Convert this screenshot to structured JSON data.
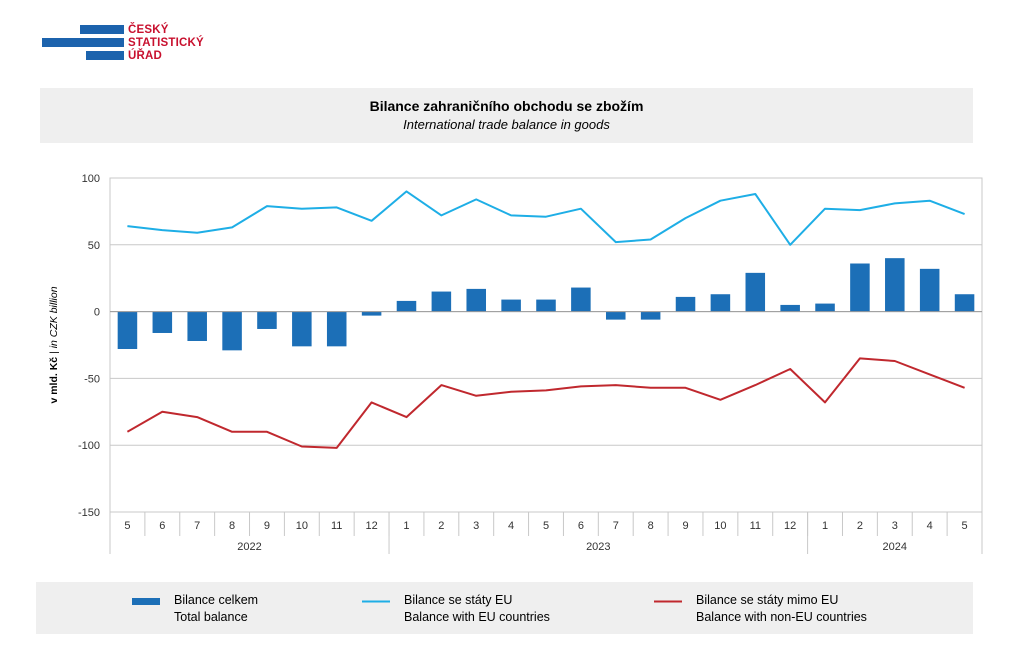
{
  "logo": {
    "lines": [
      "ČESKÝ",
      "STATISTICKÝ",
      "ÚŘAD"
    ]
  },
  "title": {
    "cz": "Bilance zahraničního obchodu se zbožím",
    "en": "International trade balance in goods"
  },
  "colors": {
    "total": "#1c6fb7",
    "eu": "#1eaee6",
    "non_eu": "#c0282e",
    "grid": "#c8c8c8",
    "panel": "#efefef"
  },
  "legend": [
    {
      "cz": "Bilance celkem",
      "en": "Total balance"
    },
    {
      "cz": "Bilance se státy EU",
      "en": "Balance with EU countries"
    },
    {
      "cz": "Bilance se státy mimo EU",
      "en": "Balance with non-EU countries"
    }
  ],
  "chart_data": {
    "type": "bar",
    "ylabel_cz": "v mld. Kč",
    "ylabel_en": "in CZK billion",
    "ylim": [
      -150,
      100
    ],
    "yticks": [
      100,
      50,
      0,
      -50,
      -100,
      -150
    ],
    "grid": true,
    "legend_position": "bottom",
    "categories": [
      "5",
      "6",
      "7",
      "8",
      "9",
      "10",
      "11",
      "12",
      "1",
      "2",
      "3",
      "4",
      "5",
      "6",
      "7",
      "8",
      "9",
      "10",
      "11",
      "12",
      "1",
      "2",
      "3",
      "4",
      "5"
    ],
    "years": [
      {
        "label": "2022",
        "count": 8
      },
      {
        "label": "2023",
        "count": 12
      },
      {
        "label": "2024",
        "count": 5
      }
    ],
    "series": [
      {
        "name": "Bilance celkem",
        "type": "bar",
        "values": [
          -28,
          -16,
          -22,
          -29,
          -13,
          -26,
          -26,
          -3,
          8,
          15,
          17,
          9,
          9,
          18,
          -6,
          -6,
          11,
          13,
          29,
          5,
          6,
          36,
          40,
          32,
          13
        ]
      },
      {
        "name": "Bilance se státy EU",
        "type": "line",
        "values": [
          64,
          61,
          59,
          63,
          79,
          77,
          78,
          68,
          90,
          72,
          84,
          72,
          71,
          77,
          52,
          54,
          70,
          83,
          88,
          50,
          77,
          76,
          81,
          83,
          73
        ]
      },
      {
        "name": "Bilance se státy mimo EU",
        "type": "line",
        "values": [
          -90,
          -75,
          -79,
          -90,
          -90,
          -101,
          -102,
          -68,
          -79,
          -55,
          -63,
          -60,
          -59,
          -56,
          -55,
          -57,
          -57,
          -66,
          -55,
          -43,
          -68,
          -35,
          -37,
          -47,
          -57
        ]
      }
    ]
  }
}
